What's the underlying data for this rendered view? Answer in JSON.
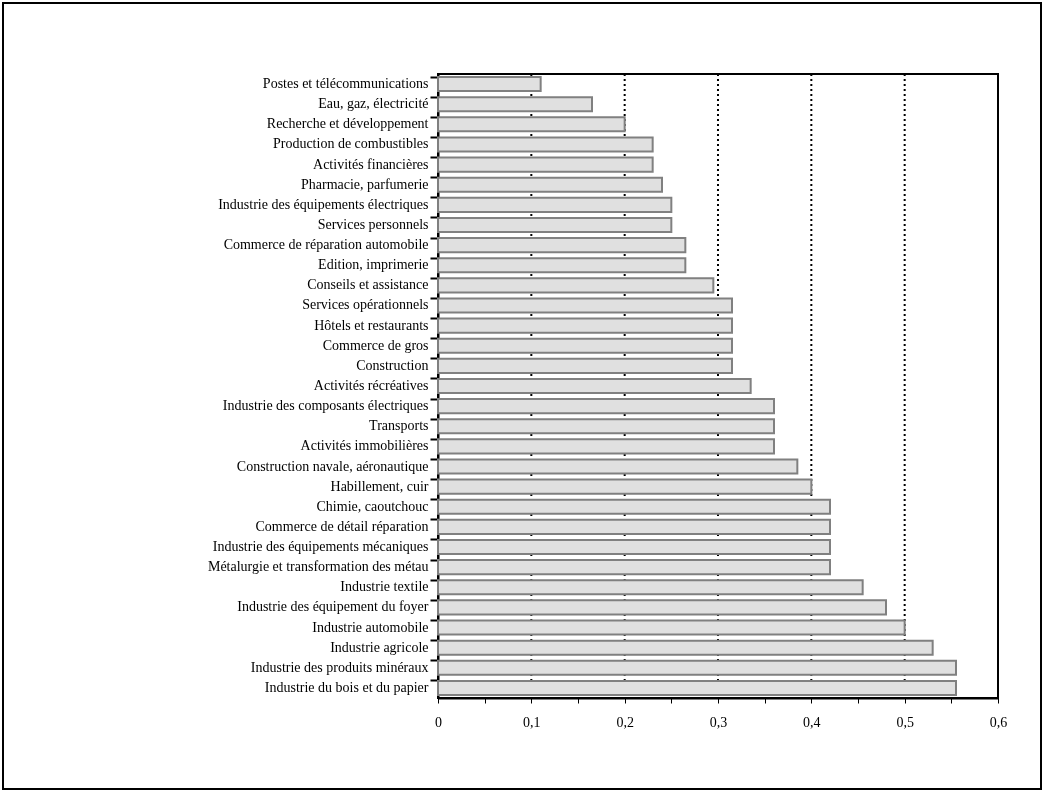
{
  "chart_data": {
    "type": "bar",
    "orientation": "horizontal",
    "categories": [
      "Postes et télécommunications",
      "Eau, gaz, électricité",
      "Recherche et développement",
      "Production de combustibles",
      "Activités financières",
      "Pharmacie, parfumerie",
      "Industrie des équipements électriques",
      "Services personnels",
      "Commerce de réparation automobile",
      "Edition, imprimerie",
      "Conseils et assistance",
      "Services opérationnels",
      "Hôtels et restaurants",
      "Commerce de gros",
      "Construction",
      "Activités récréatives",
      "Industrie des composants électriques",
      "Transports",
      "Activités immobilières",
      "Construction navale, aéronautique",
      "Habillement, cuir",
      "Chimie, caoutchouc",
      "Commerce de détail réparation",
      "Industrie des équipements mécaniques",
      "Métalurgie et transformation des métau",
      "Industrie textile",
      "Industrie des équipement du foyer",
      "Industrie automobile",
      "Industrie agricole",
      "Industrie des produits minéraux",
      "Industrie du bois et du papier"
    ],
    "values": [
      0.11,
      0.165,
      0.2,
      0.23,
      0.23,
      0.24,
      0.25,
      0.25,
      0.265,
      0.265,
      0.295,
      0.315,
      0.315,
      0.315,
      0.315,
      0.335,
      0.36,
      0.36,
      0.36,
      0.385,
      0.4,
      0.42,
      0.42,
      0.42,
      0.42,
      0.455,
      0.48,
      0.5,
      0.53,
      0.555,
      0.555
    ],
    "color": "#e0e0e0",
    "xlim": [
      0,
      0.6
    ],
    "xticks": [
      0,
      {
        "value": 0.05,
        "label": null
      },
      {
        "value": 0.1,
        "label": "0,1"
      },
      {
        "value": 0.15,
        "label": null
      },
      {
        "value": 0.2,
        "label": "0,2"
      },
      {
        "value": 0.25,
        "label": null
      },
      {
        "value": 0.3,
        "label": "0,3"
      },
      {
        "value": 0.35,
        "label": null
      },
      {
        "value": 0.4,
        "label": "0,4"
      },
      {
        "value": 0.45,
        "label": null
      },
      {
        "value": 0.5,
        "label": "0,5"
      },
      {
        "value": 0.55,
        "label": null
      },
      {
        "value": 0.6,
        "label": "0,6"
      }
    ],
    "grid": "x"
  }
}
